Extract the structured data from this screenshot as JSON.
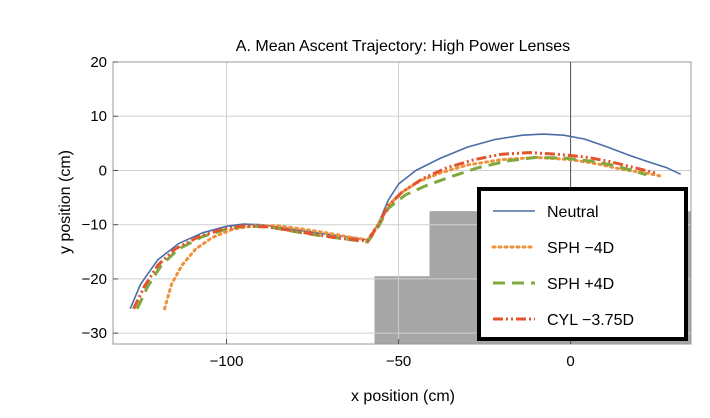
{
  "chart_data": {
    "type": "line",
    "title": "A. Mean Ascent Trajectory: High Power Lenses",
    "xlabel": "x position (cm)",
    "ylabel": "y position (cm)",
    "xlim": [
      -133,
      35
    ],
    "ylim": [
      -32,
      20
    ],
    "xticks": [
      -100,
      -50,
      0
    ],
    "xtick_labels": [
      "−100",
      "−50",
      "0"
    ],
    "yticks": [
      -30,
      -20,
      -10,
      0,
      10,
      20
    ],
    "ytick_labels": [
      "−30",
      "−20",
      "−10",
      "0",
      "10",
      "20"
    ],
    "grid": true,
    "legend_position": "bottom-right",
    "obstacles": [
      {
        "x": [
          -57,
          -41
        ],
        "y": [
          -32,
          -19.5
        ]
      },
      {
        "x": [
          -41,
          35
        ],
        "y": [
          -32,
          -7.5
        ]
      }
    ],
    "series": [
      {
        "name": "Neutral",
        "color": "#4a6da7",
        "dash": "solid",
        "points": [
          [
            -128,
            -25.5
          ],
          [
            -125,
            -21
          ],
          [
            -120,
            -16.5
          ],
          [
            -114,
            -13.5
          ],
          [
            -107,
            -11.5
          ],
          [
            -100,
            -10.3
          ],
          [
            -95,
            -9.9
          ],
          [
            -90,
            -10
          ],
          [
            -84,
            -10.5
          ],
          [
            -77,
            -11.2
          ],
          [
            -70,
            -11.8
          ],
          [
            -63,
            -12.4
          ],
          [
            -59,
            -12.8
          ],
          [
            -56,
            -10
          ],
          [
            -53,
            -5.5
          ],
          [
            -50,
            -2.5
          ],
          [
            -45,
            0
          ],
          [
            -38,
            2.2
          ],
          [
            -30,
            4.3
          ],
          [
            -22,
            5.7
          ],
          [
            -14,
            6.5
          ],
          [
            -8,
            6.7
          ],
          [
            -2,
            6.5
          ],
          [
            4,
            5.8
          ],
          [
            10,
            4.5
          ],
          [
            17,
            2.8
          ],
          [
            23,
            1.5
          ],
          [
            28,
            0.5
          ],
          [
            32,
            -0.7
          ]
        ]
      },
      {
        "name": "SPH −4D",
        "color": "#f0923a",
        "dash": "dotted",
        "points": [
          [
            -118,
            -25.5
          ],
          [
            -116,
            -21
          ],
          [
            -113,
            -17.5
          ],
          [
            -109,
            -14.5
          ],
          [
            -104,
            -12.3
          ],
          [
            -98,
            -10.8
          ],
          [
            -92,
            -10.2
          ],
          [
            -85,
            -10.2
          ],
          [
            -78,
            -10.8
          ],
          [
            -71,
            -11.5
          ],
          [
            -64,
            -12.3
          ],
          [
            -59,
            -12.8
          ],
          [
            -56,
            -10
          ],
          [
            -53,
            -6.5
          ],
          [
            -49,
            -4
          ],
          [
            -44,
            -2
          ],
          [
            -38,
            -0.5
          ],
          [
            -30,
            1
          ],
          [
            -20,
            2
          ],
          [
            -10,
            2.4
          ],
          [
            0,
            2
          ],
          [
            8,
            1.2
          ],
          [
            15,
            0.2
          ],
          [
            22,
            -0.5
          ],
          [
            26,
            -1
          ]
        ]
      },
      {
        "name": "SPH +4D",
        "color": "#80a83c",
        "dash": "dashed",
        "points": [
          [
            -126,
            -25.5
          ],
          [
            -123,
            -21.5
          ],
          [
            -119,
            -17.5
          ],
          [
            -114,
            -14.5
          ],
          [
            -107,
            -12.2
          ],
          [
            -100,
            -10.8
          ],
          [
            -94,
            -10.2
          ],
          [
            -87,
            -10.5
          ],
          [
            -80,
            -11.3
          ],
          [
            -73,
            -12
          ],
          [
            -66,
            -12.6
          ],
          [
            -59,
            -13.2
          ],
          [
            -56,
            -10.5
          ],
          [
            -53,
            -7
          ],
          [
            -48,
            -4.5
          ],
          [
            -42,
            -2.8
          ],
          [
            -35,
            -1.2
          ],
          [
            -27,
            0.5
          ],
          [
            -18,
            1.8
          ],
          [
            -10,
            2.4
          ],
          [
            -2,
            2.3
          ],
          [
            5,
            1.8
          ],
          [
            12,
            1
          ],
          [
            18,
            0
          ],
          [
            22,
            -0.8
          ]
        ]
      },
      {
        "name": "CYL −3.75D",
        "color": "#e4532e",
        "dash": "dashdot",
        "points": [
          [
            -127,
            -25.5
          ],
          [
            -124,
            -21.5
          ],
          [
            -120,
            -17.5
          ],
          [
            -115,
            -14.5
          ],
          [
            -108,
            -12.2
          ],
          [
            -101,
            -10.8
          ],
          [
            -95,
            -10.2
          ],
          [
            -88,
            -10.4
          ],
          [
            -81,
            -11.1
          ],
          [
            -74,
            -11.8
          ],
          [
            -67,
            -12.5
          ],
          [
            -59,
            -13
          ],
          [
            -56,
            -10.2
          ],
          [
            -53,
            -6.5
          ],
          [
            -49,
            -4
          ],
          [
            -43,
            -1.5
          ],
          [
            -36,
            0.5
          ],
          [
            -28,
            2
          ],
          [
            -20,
            3
          ],
          [
            -12,
            3.3
          ],
          [
            -4,
            3
          ],
          [
            4,
            2.5
          ],
          [
            11,
            1.7
          ],
          [
            18,
            0.6
          ],
          [
            25,
            -0.5
          ]
        ]
      }
    ]
  }
}
